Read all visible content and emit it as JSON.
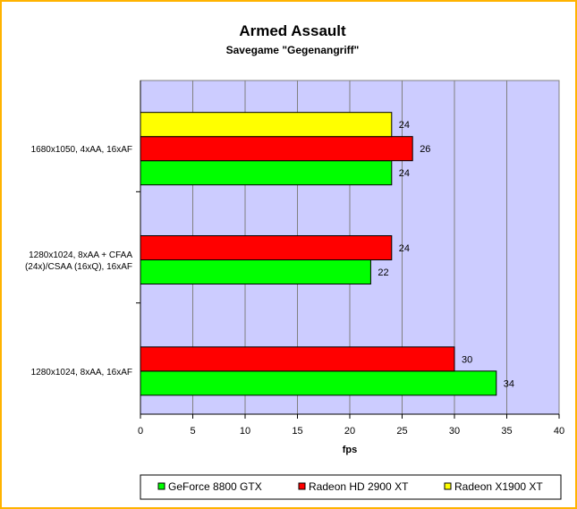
{
  "chart_data": {
    "type": "bar",
    "orientation": "horizontal",
    "title": "Armed Assault",
    "subtitle": "Savegame \"Gegenangriff\"",
    "xlabel": "fps",
    "ylabel": "",
    "xlim": [
      0,
      40
    ],
    "xticks": [
      0,
      5,
      10,
      15,
      20,
      25,
      30,
      35,
      40
    ],
    "grid": "vertical",
    "legend_position": "bottom",
    "plot_background": "#ccccff",
    "categories": [
      [
        "1680x1050, 4xAA, 16xAF"
      ],
      [
        "1280x1024, 8xAA + CFAA",
        "(24x)/CSAA (16xQ), 16xAF"
      ],
      [
        "1280x1024, 8xAA, 16xAF"
      ]
    ],
    "series": [
      {
        "name": "GeForce 8800 GTX",
        "color": "#00ff00",
        "values": [
          24,
          22,
          34
        ]
      },
      {
        "name": "Radeon HD 2900 XT",
        "color": "#ff0000",
        "values": [
          26,
          24,
          30
        ]
      },
      {
        "name": "Radeon X1900 XT",
        "color": "#ffff00",
        "values": [
          24,
          null,
          null
        ]
      }
    ]
  }
}
